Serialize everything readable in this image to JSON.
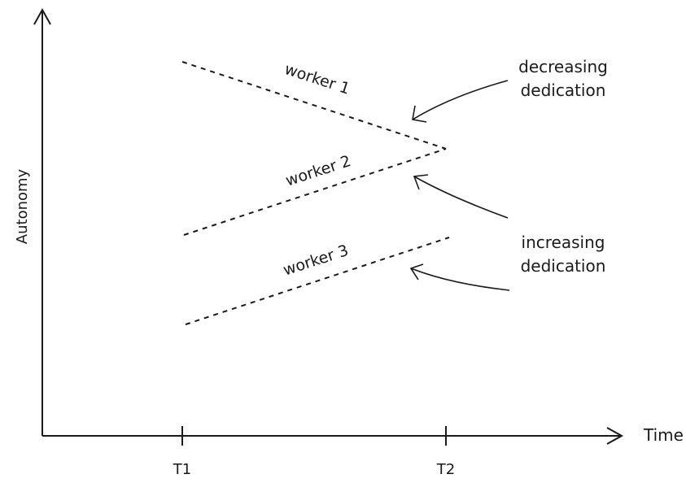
{
  "axes": {
    "y_label": "Autonomy",
    "x_label": "Time",
    "x_ticks": [
      "T1",
      "T2"
    ]
  },
  "workers": [
    "worker 1",
    "worker 2",
    "worker 3"
  ],
  "annotations": {
    "decreasing": [
      "decreasing",
      "dedication"
    ],
    "increasing": [
      "increasing",
      "dedication"
    ]
  },
  "colors": {
    "ink": "#1a1a1a",
    "background": "#ffffff"
  }
}
